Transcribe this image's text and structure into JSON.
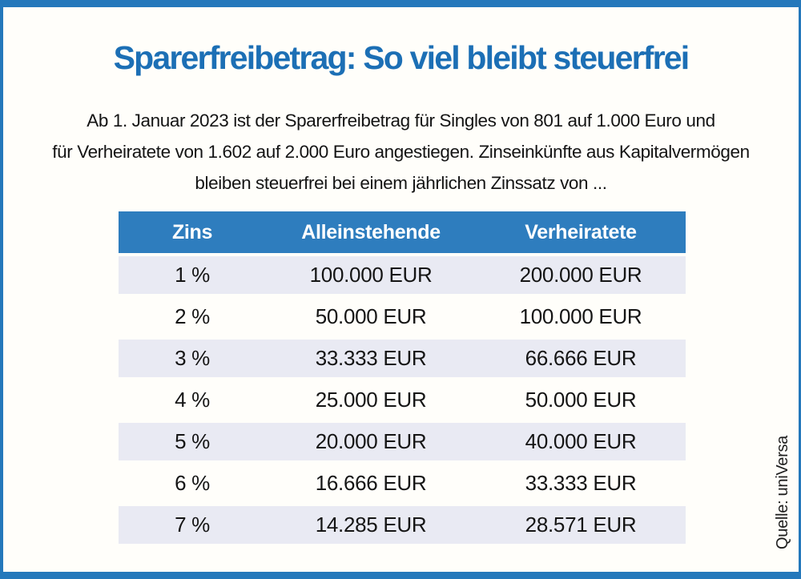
{
  "colors": {
    "frame_blue": "#2478bb",
    "title_blue": "#1c6fb5",
    "table_header_bg": "#2e7dbe",
    "table_header_text": "#ffffff",
    "row_alt_bg": "#e9eaf3",
    "body_text": "#141414",
    "background": "#fffefa"
  },
  "header": {
    "title": "Sparerfreibetrag: So viel bleibt steuerfrei"
  },
  "intro": {
    "line1": "Ab 1. Januar 2023 ist der Sparerfreibetrag für Singles von 801 auf 1.000 Euro und",
    "line2": "für Verheiratete von 1.602 auf 2.000 Euro angestiegen. Zinseinkünfte aus Kapitalvermögen",
    "line3": "bleiben steuerfrei bei einem jährlichen Zinssatz von ..."
  },
  "table": {
    "columns": [
      "Zins",
      "Alleinstehende",
      "Verheiratete"
    ],
    "rows": [
      {
        "zins": "1 %",
        "alleinstehende": "100.000 EUR",
        "verheiratete": "200.000 EUR"
      },
      {
        "zins": "2 %",
        "alleinstehende": "50.000 EUR",
        "verheiratete": "100.000 EUR"
      },
      {
        "zins": "3 %",
        "alleinstehende": "33.333 EUR",
        "verheiratete": "66.666 EUR"
      },
      {
        "zins": "4 %",
        "alleinstehende": "25.000 EUR",
        "verheiratete": "50.000 EUR"
      },
      {
        "zins": "5 %",
        "alleinstehende": "20.000 EUR",
        "verheiratete": "40.000 EUR"
      },
      {
        "zins": "6 %",
        "alleinstehende": "16.666 EUR",
        "verheiratete": "33.333 EUR"
      },
      {
        "zins": "7 %",
        "alleinstehende": "14.285 EUR",
        "verheiratete": "28.571 EUR"
      }
    ]
  },
  "source": {
    "label": "Quelle: uniVersa"
  },
  "chart_data": {
    "type": "table",
    "title": "Sparerfreibetrag: So viel bleibt steuerfrei",
    "subtitle": "Ab 1. Januar 2023 ist der Sparerfreibetrag für Singles von 801 auf 1.000 Euro und für Verheiratete von 1.602 auf 2.000 Euro angestiegen. Zinseinkünfte aus Kapitalvermögen bleiben steuerfrei bei einem jährlichen Zinssatz von ...",
    "columns": [
      "Zins",
      "Alleinstehende",
      "Verheiratete"
    ],
    "rows": [
      [
        "1 %",
        "100.000 EUR",
        "200.000 EUR"
      ],
      [
        "2 %",
        "50.000 EUR",
        "100.000 EUR"
      ],
      [
        "3 %",
        "33.333 EUR",
        "66.666 EUR"
      ],
      [
        "4 %",
        "25.000 EUR",
        "50.000 EUR"
      ],
      [
        "5 %",
        "20.000 EUR",
        "40.000 EUR"
      ],
      [
        "6 %",
        "16.666 EUR",
        "33.333 EUR"
      ],
      [
        "7 %",
        "14.285 EUR",
        "28.571 EUR"
      ]
    ],
    "source": "Quelle: uniVersa"
  }
}
